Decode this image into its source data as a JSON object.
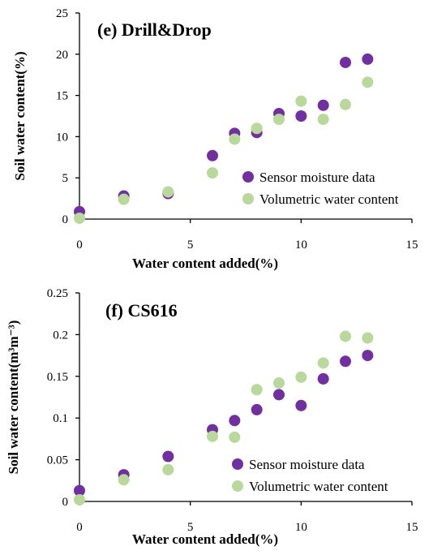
{
  "chart_data": [
    {
      "type": "scatter",
      "title": "(e) Drill&Drop",
      "xlabel": "Water content added(%)",
      "ylabel": "Soil water content(%)",
      "xlim": [
        0,
        15
      ],
      "ylim": [
        0,
        25
      ],
      "xticks": [
        "0",
        "5",
        "10",
        "15"
      ],
      "yticks": [
        "0",
        "5",
        "10",
        "15",
        "20",
        "25"
      ],
      "grid": false,
      "legend_position": "right",
      "series": [
        {
          "name": "Sensor moisture data",
          "color": "#7030a0",
          "x": [
            0,
            2,
            4,
            6,
            7,
            8,
            9,
            10,
            11,
            12,
            13
          ],
          "y": [
            0.9,
            2.8,
            3.1,
            7.7,
            10.4,
            10.5,
            12.8,
            12.5,
            13.8,
            19.0,
            19.4
          ]
        },
        {
          "name": "Volumetric water content",
          "color": "#b8d89c",
          "x": [
            0,
            2,
            4,
            6,
            7,
            8,
            9,
            10,
            11,
            12,
            13
          ],
          "y": [
            0.1,
            2.4,
            3.3,
            5.6,
            9.7,
            11.0,
            12.1,
            14.3,
            12.1,
            13.9,
            16.6
          ]
        }
      ]
    },
    {
      "type": "scatter",
      "title": "(f) CS616",
      "xlabel": "Water content added(%)",
      "ylabel": "Soil water content(m³m⁻³)",
      "xlim": [
        0,
        15
      ],
      "ylim": [
        0,
        0.25
      ],
      "xticks": [
        "0",
        "5",
        "10",
        "15"
      ],
      "yticks": [
        "0",
        "0.05",
        "0.1",
        "0.15",
        "0.2",
        "0.25"
      ],
      "grid": false,
      "legend_position": "bottom-right",
      "series": [
        {
          "name": "Sensor moisture data",
          "color": "#7030a0",
          "x": [
            0,
            2,
            4,
            6,
            7,
            8,
            9,
            10,
            11,
            12,
            13
          ],
          "y": [
            0.013,
            0.032,
            0.054,
            0.086,
            0.097,
            0.11,
            0.128,
            0.115,
            0.147,
            0.168,
            0.175
          ]
        },
        {
          "name": "Volumetric water content",
          "color": "#b8d89c",
          "x": [
            0,
            2,
            4,
            6,
            7,
            8,
            9,
            10,
            11,
            12,
            13
          ],
          "y": [
            0.002,
            0.026,
            0.038,
            0.078,
            0.077,
            0.134,
            0.142,
            0.149,
            0.166,
            0.198,
            0.196
          ]
        }
      ]
    }
  ]
}
